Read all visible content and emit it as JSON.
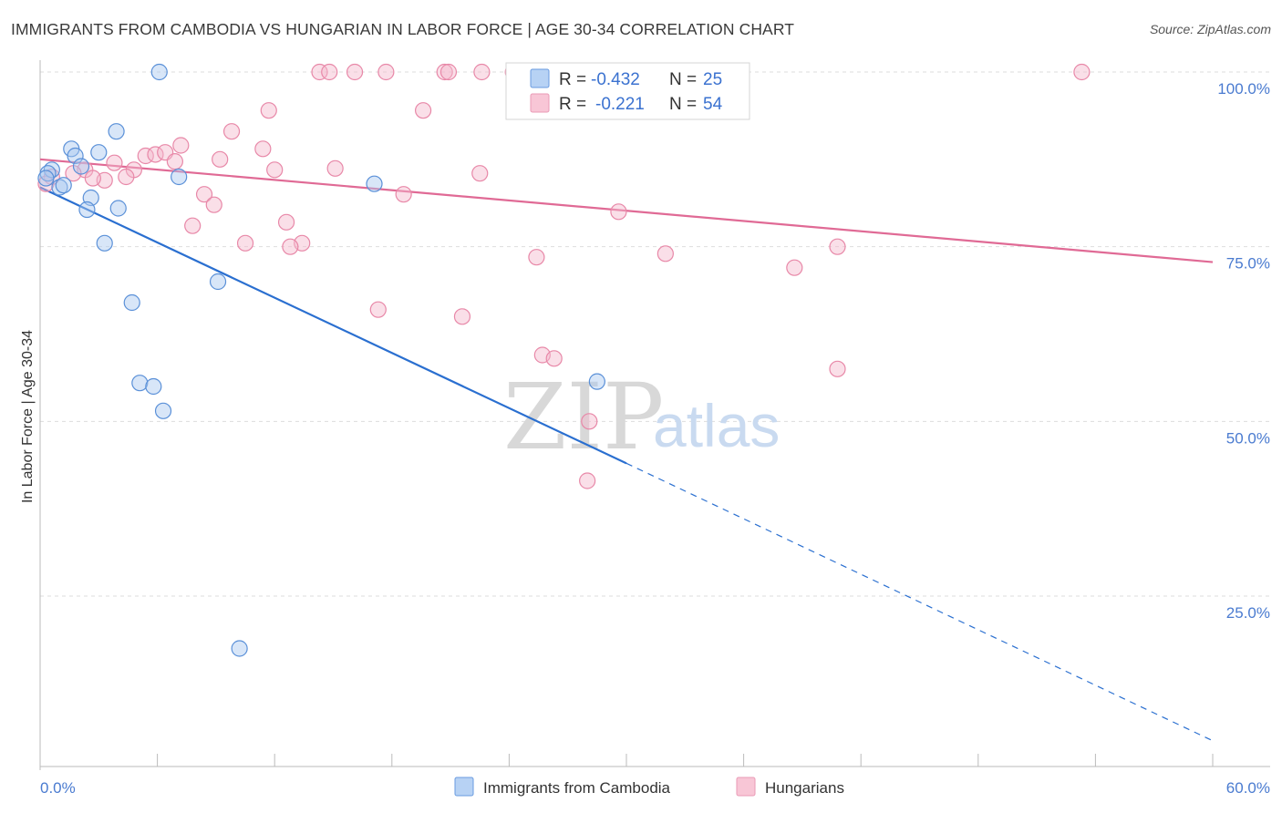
{
  "title": "IMMIGRANTS FROM CAMBODIA VS HUNGARIAN IN LABOR FORCE | AGE 30-34 CORRELATION CHART",
  "source": "Source: ZipAtlas.com",
  "colors": {
    "blue_fill": "#a8c8f0",
    "blue_stroke": "#5a90d8",
    "blue_line": "#2a6fd0",
    "pink_fill": "#f5b8cb",
    "pink_stroke": "#e888a8",
    "pink_line": "#e06a95",
    "tick_label": "#4a7bd0",
    "grid": "#dddddd"
  },
  "stats": {
    "r_label": "R =",
    "n_label": "N =",
    "blue_r": "-0.432",
    "blue_n": "25",
    "pink_r": "-0.221",
    "pink_n": "54"
  },
  "watermark": {
    "zip": "ZIP",
    "atlas": "atlas"
  },
  "chart_data": {
    "type": "scatter",
    "title": "IMMIGRANTS FROM CAMBODIA VS HUNGARIAN IN LABOR FORCE | AGE 30-34 CORRELATION CHART",
    "xlabel": "",
    "ylabel": "In Labor Force | Age 30-34",
    "xlim": [
      0,
      60
    ],
    "ylim": [
      0,
      105
    ],
    "x_tick_labels": [
      "0.0%",
      "60.0%"
    ],
    "y_ticks": [
      {
        "value": 100,
        "label": "100.0%"
      },
      {
        "value": 75,
        "label": "75.0%"
      },
      {
        "value": 50,
        "label": "50.0%"
      },
      {
        "value": 25,
        "label": "25.0%"
      }
    ],
    "grid": true,
    "legend_position": "bottom",
    "series": [
      {
        "name": "Immigrants from Cambodia",
        "color": "blue",
        "r": -0.432,
        "n": 25,
        "trend": {
          "x0": 0,
          "y0": 83.5,
          "x1": 30,
          "y1": 44,
          "dashed_to_x": 60,
          "dashed_to_y": 4.3
        },
        "points": [
          [
            6.1,
            100
          ],
          [
            3.9,
            91.5
          ],
          [
            1.6,
            89
          ],
          [
            3.0,
            88.5
          ],
          [
            1.8,
            88
          ],
          [
            0.6,
            86
          ],
          [
            2.1,
            86.5
          ],
          [
            0.4,
            85.5
          ],
          [
            7.1,
            85
          ],
          [
            0.3,
            84.8
          ],
          [
            17.1,
            84
          ],
          [
            1.0,
            83.5
          ],
          [
            1.2,
            83.8
          ],
          [
            2.6,
            82
          ],
          [
            2.4,
            80.3
          ],
          [
            4.0,
            80.5
          ],
          [
            3.3,
            75.5
          ],
          [
            9.1,
            70
          ],
          [
            4.7,
            67
          ],
          [
            5.1,
            55.5
          ],
          [
            5.8,
            55
          ],
          [
            28.5,
            55.7
          ],
          [
            6.3,
            51.5
          ],
          [
            10.2,
            17.5
          ]
        ]
      },
      {
        "name": "Hungarians",
        "color": "pink",
        "r": -0.221,
        "n": 54,
        "trend": {
          "x0": 0,
          "y0": 87.5,
          "x1": 60,
          "y1": 72.8
        },
        "points": [
          [
            14.3,
            100
          ],
          [
            14.8,
            100
          ],
          [
            16.1,
            100
          ],
          [
            17.7,
            100
          ],
          [
            20.7,
            100
          ],
          [
            20.9,
            100
          ],
          [
            22.6,
            100
          ],
          [
            24.2,
            100
          ],
          [
            25.9,
            100
          ],
          [
            53.3,
            100
          ],
          [
            26.2,
            95
          ],
          [
            11.7,
            94.5
          ],
          [
            19.6,
            94.5
          ],
          [
            9.8,
            91.5
          ],
          [
            7.2,
            89.5
          ],
          [
            11.4,
            89
          ],
          [
            5.4,
            88
          ],
          [
            5.9,
            88.2
          ],
          [
            6.4,
            88.5
          ],
          [
            9.2,
            87.5
          ],
          [
            6.9,
            87.2
          ],
          [
            3.8,
            87
          ],
          [
            2.3,
            86
          ],
          [
            4.8,
            86
          ],
          [
            1.7,
            85.5
          ],
          [
            12.0,
            86
          ],
          [
            15.1,
            86.2
          ],
          [
            0.6,
            85
          ],
          [
            3.3,
            84.5
          ],
          [
            2.7,
            84.8
          ],
          [
            4.4,
            85
          ],
          [
            22.5,
            85.5
          ],
          [
            0.3,
            84
          ],
          [
            8.4,
            82.5
          ],
          [
            18.6,
            82.5
          ],
          [
            8.9,
            81
          ],
          [
            29.6,
            80
          ],
          [
            12.6,
            78.5
          ],
          [
            7.8,
            78
          ],
          [
            10.5,
            75.5
          ],
          [
            13.4,
            75.5
          ],
          [
            12.8,
            75
          ],
          [
            40.8,
            75
          ],
          [
            25.4,
            73.5
          ],
          [
            32.0,
            74
          ],
          [
            38.6,
            72
          ],
          [
            17.3,
            66
          ],
          [
            21.6,
            65
          ],
          [
            25.7,
            59.5
          ],
          [
            26.3,
            59
          ],
          [
            40.8,
            57.5
          ],
          [
            28.1,
            50
          ],
          [
            28.0,
            41.5
          ]
        ]
      }
    ]
  },
  "legend": [
    {
      "label": "Immigrants from Cambodia",
      "color": "blue"
    },
    {
      "label": "Hungarians",
      "color": "pink"
    }
  ]
}
